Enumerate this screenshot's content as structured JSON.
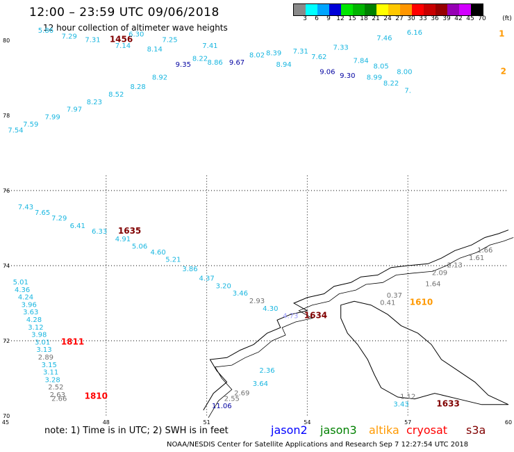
{
  "title": "12:00 – 23:59 UTC 09/06/2018",
  "subtitle": "12 hour collection of altimeter wave heights",
  "legend": {
    "unit": "(ft)",
    "bins": [
      {
        "label": "3",
        "color": "#8a8a8a"
      },
      {
        "label": "6",
        "color": "#00ffff"
      },
      {
        "label": "9",
        "color": "#00a5ff"
      },
      {
        "label": "12",
        "color": "#0000d8"
      },
      {
        "label": "15",
        "color": "#00e600"
      },
      {
        "label": "18",
        "color": "#00b400"
      },
      {
        "label": "21",
        "color": "#008000"
      },
      {
        "label": "24",
        "color": "#ffff00"
      },
      {
        "label": "27",
        "color": "#ffc800"
      },
      {
        "label": "30",
        "color": "#ff9600"
      },
      {
        "label": "33",
        "color": "#ff0000"
      },
      {
        "label": "36",
        "color": "#c80000"
      },
      {
        "label": "39",
        "color": "#960000"
      },
      {
        "label": "42",
        "color": "#9600b4"
      },
      {
        "label": "45",
        "color": "#d200ff"
      },
      {
        "label": "70",
        "color": "#000000"
      }
    ]
  },
  "axes": {
    "lat_labels": [
      "80",
      "78",
      "76",
      "74",
      "72",
      "70"
    ],
    "lon_labels": [
      "45",
      "48",
      "51",
      "54",
      "57",
      "60"
    ]
  },
  "colors": {
    "cyan": "#18b6e0",
    "blue": "#0000a0",
    "gray": "#707070",
    "darkred": "#800000",
    "red": "#ff0000",
    "orange": "#ff9900",
    "lav": "#9999ff"
  },
  "observations": [
    {
      "lon": 45.3,
      "lat": 77.55,
      "value": "7.54",
      "c": "cyan"
    },
    {
      "lon": 45.75,
      "lat": 77.7,
      "value": "7.59",
      "c": "cyan"
    },
    {
      "lon": 46.4,
      "lat": 77.9,
      "value": "7.99",
      "c": "cyan"
    },
    {
      "lon": 47.05,
      "lat": 78.1,
      "value": "7.97",
      "c": "cyan"
    },
    {
      "lon": 47.65,
      "lat": 78.3,
      "value": "8.23",
      "c": "cyan"
    },
    {
      "lon": 48.3,
      "lat": 78.5,
      "value": "8.52",
      "c": "cyan"
    },
    {
      "lon": 48.95,
      "lat": 78.7,
      "value": "8.28",
      "c": "cyan"
    },
    {
      "lon": 49.6,
      "lat": 78.95,
      "value": "8.92",
      "c": "cyan"
    },
    {
      "lon": 50.3,
      "lat": 79.3,
      "value": "9.35",
      "c": "blue"
    },
    {
      "lon": 50.8,
      "lat": 79.45,
      "value": "8.22",
      "c": "cyan"
    },
    {
      "lon": 51.25,
      "lat": 79.35,
      "value": "8.86",
      "c": "cyan"
    },
    {
      "lon": 51.9,
      "lat": 79.35,
      "value": "9.67",
      "c": "blue"
    },
    {
      "lon": 52.5,
      "lat": 79.55,
      "value": "8.02",
      "c": "cyan"
    },
    {
      "lon": 53.0,
      "lat": 79.6,
      "value": "8.39",
      "c": "cyan"
    },
    {
      "lon": 53.3,
      "lat": 79.3,
      "value": "8.94",
      "c": "cyan"
    },
    {
      "lon": 53.8,
      "lat": 79.65,
      "value": "7.31",
      "c": "cyan"
    },
    {
      "lon": 54.35,
      "lat": 79.5,
      "value": "7.62",
      "c": "cyan"
    },
    {
      "lon": 54.6,
      "lat": 79.1,
      "value": "9.06",
      "c": "blue"
    },
    {
      "lon": 55.2,
      "lat": 79.0,
      "value": "9.30",
      "c": "blue"
    },
    {
      "lon": 55.0,
      "lat": 79.75,
      "value": "7.33",
      "c": "cyan"
    },
    {
      "lon": 55.6,
      "lat": 79.4,
      "value": "7.84",
      "c": "cyan"
    },
    {
      "lon": 56.2,
      "lat": 79.25,
      "value": "8.05",
      "c": "cyan"
    },
    {
      "lon": 56.0,
      "lat": 78.95,
      "value": "8.99",
      "c": "cyan"
    },
    {
      "lon": 56.3,
      "lat": 80.0,
      "value": "7.46",
      "c": "cyan"
    },
    {
      "lon": 56.9,
      "lat": 79.1,
      "value": "8.00",
      "c": "cyan"
    },
    {
      "lon": 56.5,
      "lat": 78.8,
      "value": "8.22",
      "c": "cyan"
    },
    {
      "lon": 57.2,
      "lat": 80.15,
      "value": "6.16",
      "c": "cyan"
    },
    {
      "lon": 57.0,
      "lat": 78.6,
      "value": "7.",
      "c": "cyan"
    },
    {
      "lon": 46.2,
      "lat": 80.2,
      "value": "5.86",
      "c": "cyan"
    },
    {
      "lon": 46.9,
      "lat": 80.05,
      "value": "7.29",
      "c": "cyan"
    },
    {
      "lon": 47.6,
      "lat": 79.95,
      "value": "7.31",
      "c": "cyan"
    },
    {
      "lon": 48.45,
      "lat": 79.95,
      "value": "1456",
      "c": "darkred",
      "time": true
    },
    {
      "lon": 48.5,
      "lat": 79.8,
      "value": "7.14",
      "c": "cyan"
    },
    {
      "lon": 48.9,
      "lat": 80.1,
      "value": "6.30",
      "c": "cyan"
    },
    {
      "lon": 49.45,
      "lat": 79.7,
      "value": "8.14",
      "c": "cyan"
    },
    {
      "lon": 49.9,
      "lat": 79.95,
      "value": "7.25",
      "c": "cyan"
    },
    {
      "lon": 51.1,
      "lat": 79.8,
      "value": "7.41",
      "c": "cyan"
    },
    {
      "lon": 45.6,
      "lat": 75.5,
      "value": "7.43",
      "c": "cyan"
    },
    {
      "lon": 46.1,
      "lat": 75.35,
      "value": "7.65",
      "c": "cyan"
    },
    {
      "lon": 46.6,
      "lat": 75.2,
      "value": "7.29",
      "c": "cyan"
    },
    {
      "lon": 47.15,
      "lat": 75.0,
      "value": "6.41",
      "c": "cyan"
    },
    {
      "lon": 47.8,
      "lat": 74.85,
      "value": "6.33",
      "c": "cyan"
    },
    {
      "lon": 48.7,
      "lat": 74.85,
      "value": "1635",
      "c": "darkred",
      "time": true
    },
    {
      "lon": 48.5,
      "lat": 74.65,
      "value": "4.91",
      "c": "cyan"
    },
    {
      "lon": 49.0,
      "lat": 74.45,
      "value": "5.06",
      "c": "cyan"
    },
    {
      "lon": 49.55,
      "lat": 74.3,
      "value": "4.60",
      "c": "cyan"
    },
    {
      "lon": 50.0,
      "lat": 74.1,
      "value": "5.21",
      "c": "cyan"
    },
    {
      "lon": 50.5,
      "lat": 73.85,
      "value": "3.86",
      "c": "cyan"
    },
    {
      "lon": 51.0,
      "lat": 73.6,
      "value": "4.37",
      "c": "cyan"
    },
    {
      "lon": 51.5,
      "lat": 73.4,
      "value": "3.20",
      "c": "cyan"
    },
    {
      "lon": 52.0,
      "lat": 73.2,
      "value": "3.46",
      "c": "cyan"
    },
    {
      "lon": 52.5,
      "lat": 73.0,
      "value": "2.93",
      "c": "gray"
    },
    {
      "lon": 52.9,
      "lat": 72.8,
      "value": "4.30",
      "c": "cyan"
    },
    {
      "lon": 53.5,
      "lat": 72.6,
      "value": "4.73",
      "c": "lav"
    },
    {
      "lon": 54.25,
      "lat": 72.6,
      "value": "1634",
      "c": "darkred",
      "time": true
    },
    {
      "lon": 52.8,
      "lat": 71.15,
      "value": "2.36",
      "c": "cyan"
    },
    {
      "lon": 52.6,
      "lat": 70.8,
      "value": "3.64",
      "c": "cyan"
    },
    {
      "lon": 52.05,
      "lat": 70.55,
      "value": "2.69",
      "c": "gray"
    },
    {
      "lon": 51.75,
      "lat": 70.4,
      "value": "2.55",
      "c": "gray"
    },
    {
      "lon": 51.45,
      "lat": 70.2,
      "value": "11.06",
      "c": "blue"
    },
    {
      "lon": 45.45,
      "lat": 73.5,
      "value": "5.01",
      "c": "cyan"
    },
    {
      "lon": 45.5,
      "lat": 73.3,
      "value": "4.36",
      "c": "cyan"
    },
    {
      "lon": 45.6,
      "lat": 73.1,
      "value": "4.24",
      "c": "cyan"
    },
    {
      "lon": 45.7,
      "lat": 72.9,
      "value": "3.96",
      "c": "cyan"
    },
    {
      "lon": 45.75,
      "lat": 72.7,
      "value": "3.63",
      "c": "cyan"
    },
    {
      "lon": 45.85,
      "lat": 72.5,
      "value": "4.28",
      "c": "cyan"
    },
    {
      "lon": 45.9,
      "lat": 72.3,
      "value": "3.12",
      "c": "cyan"
    },
    {
      "lon": 46.0,
      "lat": 72.1,
      "value": "3.98",
      "c": "cyan"
    },
    {
      "lon": 46.1,
      "lat": 71.9,
      "value": "3.01",
      "c": "cyan"
    },
    {
      "lon": 47.0,
      "lat": 71.9,
      "value": "1811",
      "c": "red",
      "time": true
    },
    {
      "lon": 46.15,
      "lat": 71.7,
      "value": "3.13",
      "c": "cyan"
    },
    {
      "lon": 46.2,
      "lat": 71.5,
      "value": "2.89",
      "c": "gray"
    },
    {
      "lon": 46.3,
      "lat": 71.3,
      "value": "3.15",
      "c": "cyan"
    },
    {
      "lon": 46.35,
      "lat": 71.1,
      "value": "3.11",
      "c": "cyan"
    },
    {
      "lon": 46.4,
      "lat": 70.9,
      "value": "3.28",
      "c": "cyan"
    },
    {
      "lon": 46.5,
      "lat": 70.7,
      "value": "2.52",
      "c": "gray"
    },
    {
      "lon": 46.55,
      "lat": 70.5,
      "value": "2.63",
      "c": "gray"
    },
    {
      "lon": 46.6,
      "lat": 70.4,
      "value": "2.66",
      "c": "gray"
    },
    {
      "lon": 47.7,
      "lat": 70.45,
      "value": "1810",
      "c": "red",
      "time": true
    },
    {
      "lon": 59.3,
      "lat": 74.35,
      "value": "1.66",
      "c": "gray"
    },
    {
      "lon": 59.05,
      "lat": 74.15,
      "value": "1.61",
      "c": "gray"
    },
    {
      "lon": 58.4,
      "lat": 73.95,
      "value": "2.13",
      "c": "gray"
    },
    {
      "lon": 57.95,
      "lat": 73.75,
      "value": "2.09",
      "c": "gray"
    },
    {
      "lon": 57.75,
      "lat": 73.45,
      "value": "1.64",
      "c": "gray"
    },
    {
      "lon": 56.6,
      "lat": 73.15,
      "value": "0.37",
      "c": "gray"
    },
    {
      "lon": 56.4,
      "lat": 72.95,
      "value": "0.41",
      "c": "gray"
    },
    {
      "lon": 57.4,
      "lat": 72.95,
      "value": "1610",
      "c": "orange",
      "time": true
    },
    {
      "lon": 57.0,
      "lat": 70.45,
      "value": "1.12",
      "c": "gray"
    },
    {
      "lon": 56.8,
      "lat": 70.25,
      "value": "3.43",
      "c": "cyan"
    },
    {
      "lon": 58.2,
      "lat": 70.25,
      "value": "1633",
      "c": "darkred",
      "time": true
    },
    {
      "lon": 59.8,
      "lat": 80.1,
      "value": "1",
      "c": "orange",
      "time": true
    },
    {
      "lon": 59.85,
      "lat": 79.1,
      "value": "2",
      "c": "orange",
      "time": true
    }
  ],
  "note": "note:  1) Time is in UTC;  2) SWH is in feet",
  "satellites": [
    {
      "name": "jason2",
      "color": "#0000ff"
    },
    {
      "name": "jason3",
      "color": "#008000"
    },
    {
      "name": "altika",
      "color": "#ff9900"
    },
    {
      "name": "cryosat",
      "color": "#ff0000"
    },
    {
      "name": "s3a",
      "color": "#800000"
    }
  ],
  "footer": "NOAA/NESDIS Center for Satellite Applications and Research    Sep  7 12:27:54 UTC 2018"
}
